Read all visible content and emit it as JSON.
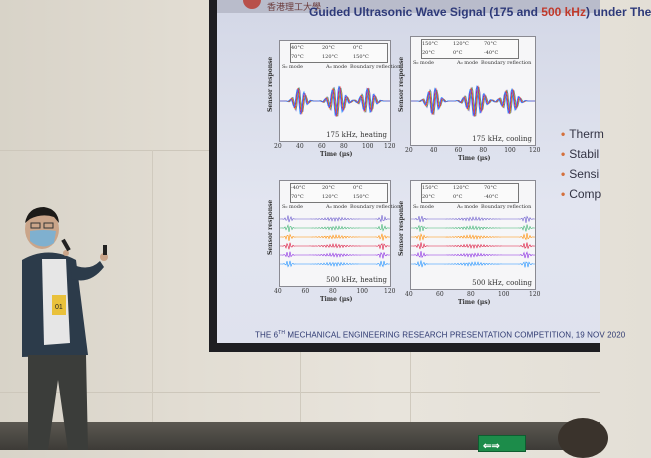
{
  "slide": {
    "university": "香港理工大學",
    "title_prefix": "Guided Ultrasonic Wave Signal (175 and ",
    "title_highlight": "500 kHz",
    "title_suffix": ") under The",
    "footer_pre": "THE 6",
    "footer_sup": "TH",
    "footer_post": " MECHANICAL ENGINEERING RESEARCH PRESENTATION COMPETITION, 19 NOV 2020",
    "bullets": [
      "Therm",
      "Stabil",
      "Sensi",
      "Comp"
    ]
  },
  "plots": [
    {
      "legend": [
        "40°C",
        "20°C",
        "0°C",
        "70°C",
        "120°C",
        "150°C"
      ],
      "mode_labels": [
        "S₀ mode",
        "A₀ mode",
        "Boundary reflection"
      ],
      "caption": "175 kHz, heating",
      "xticks": [
        "20",
        "40",
        "60",
        "80",
        "100",
        "120"
      ],
      "xlabel": "Time (μs)",
      "ylabel": "Sensor response"
    },
    {
      "legend": [
        "150°C",
        "120°C",
        "70°C",
        "20°C",
        "0°C",
        "-40°C"
      ],
      "mode_labels": [
        "S₀ mode",
        "A₀ mode",
        "Boundary reflection"
      ],
      "caption": "175 kHz, cooling",
      "xticks": [
        "20",
        "40",
        "60",
        "80",
        "100",
        "120"
      ],
      "xlabel": "Time (μs)",
      "ylabel": "Sensor response"
    },
    {
      "legend": [
        "-40°C",
        "20°C",
        "0°C",
        "70°C",
        "120°C",
        "150°C"
      ],
      "mode_labels": [
        "S₀ mode",
        "A₀ mode",
        "Boundary reflection"
      ],
      "caption": "500 kHz, heating",
      "xticks": [
        "40",
        "60",
        "80",
        "100",
        "120"
      ],
      "xlabel": "Time (μs)",
      "ylabel": "Sensor response"
    },
    {
      "legend": [
        "150°C",
        "120°C",
        "70°C",
        "20°C",
        "0°C",
        "-40°C"
      ],
      "mode_labels": [
        "S₀ mode",
        "A₀ mode",
        "Boundary reflection"
      ],
      "caption": "500 kHz, cooling",
      "xticks": [
        "40",
        "60",
        "80",
        "100",
        "120"
      ],
      "xlabel": "Time (μs)",
      "ylabel": "Sensor response"
    }
  ],
  "badge": {
    "number": "01"
  },
  "exit_sign": {
    "arrows": "⇐⇒"
  },
  "colors": {
    "title": "#2e3a7a",
    "highlight": "#c0392b",
    "bullet": "#d4703c",
    "exit": "#1c8c4a"
  }
}
